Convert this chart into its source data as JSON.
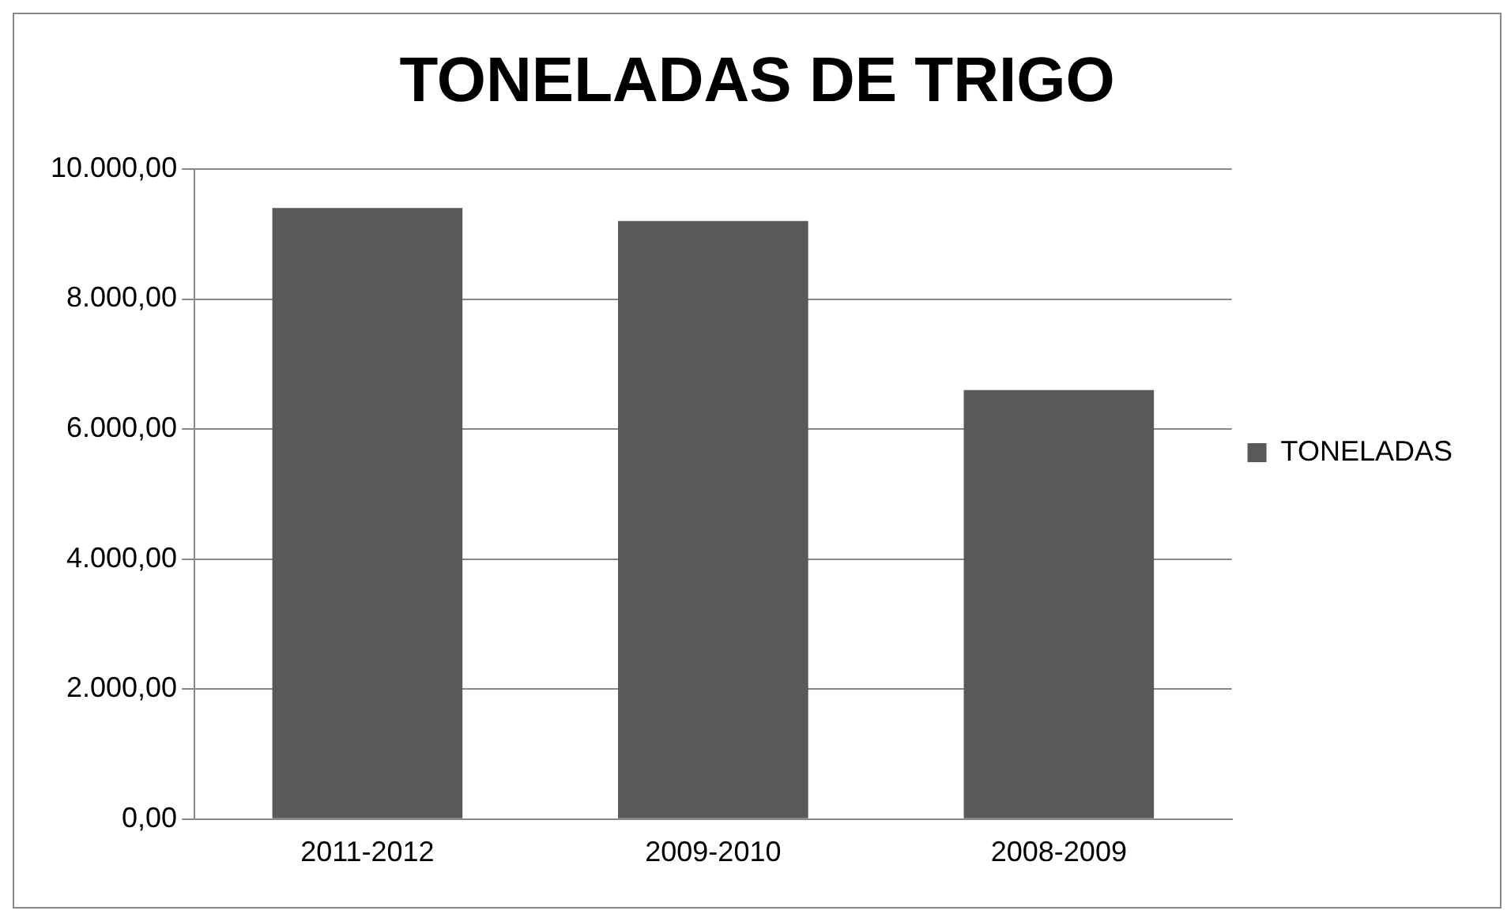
{
  "chart_data": {
    "type": "bar",
    "title": "TONELADAS DE TRIGO",
    "categories": [
      "2011-2012",
      "2009-2010",
      "2008-2009"
    ],
    "series": [
      {
        "name": "TONELADAS",
        "color": "#595959",
        "values": [
          9400,
          9200,
          6600
        ]
      }
    ],
    "ylim": [
      0,
      10000
    ],
    "yticks": [
      {
        "value": 0,
        "label": "0,00"
      },
      {
        "value": 2000,
        "label": "2.000,00"
      },
      {
        "value": 4000,
        "label": "4.000,00"
      },
      {
        "value": 6000,
        "label": "6.000,00"
      },
      {
        "value": 8000,
        "label": "8.000,00"
      },
      {
        "value": 10000,
        "label": "10.000,00"
      }
    ],
    "grid": "y",
    "legend": "right"
  }
}
